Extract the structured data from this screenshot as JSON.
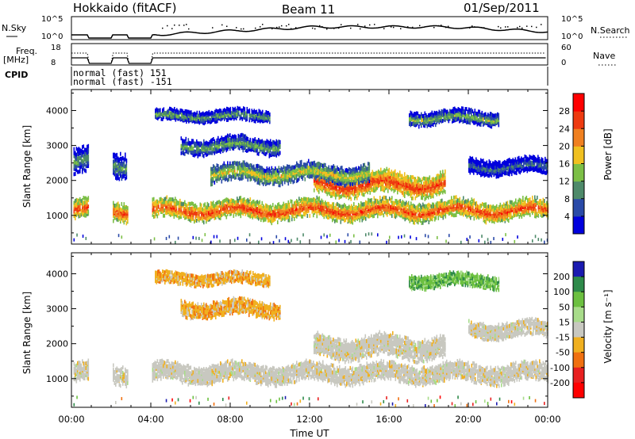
{
  "header": {
    "station": "Hokkaido (fitACF)",
    "beam": "Beam 11",
    "date": "01/Sep/2011"
  },
  "strip": {
    "nsky_label": "N.Sky",
    "nsky_ticks": [
      "10^5",
      "10^0"
    ],
    "nsearch_label": "N.Search",
    "nsearch_ticks": [
      "10^5",
      "10^0"
    ],
    "freq_label": "Freq.",
    "freq_unit": "[MHz]",
    "freq_ticks": [
      "18",
      "8"
    ],
    "nave_label": "Nave",
    "nave_ticks": [
      "60",
      "0"
    ],
    "cpid_label": "CPID",
    "cpid_lines": [
      "normal (fast) 151",
      "normal (fast) -151"
    ]
  },
  "chart_data": [
    {
      "type": "heatmap",
      "name": "power",
      "xlabel": "",
      "ylabel": "Slant Range [km]",
      "x_ticks": [
        "00:00",
        "04:00",
        "08:00",
        "12:00",
        "16:00",
        "20:00",
        "00:00"
      ],
      "y_ticks": [
        1000,
        2000,
        3000,
        4000
      ],
      "xlim_hours": [
        0,
        24
      ],
      "ylim_km": [
        180,
        4600
      ],
      "colorbar_label": "Power [dB]",
      "colorbar_ticks": [
        4,
        8,
        12,
        16,
        20,
        24,
        28
      ],
      "colorbar_range": [
        0,
        32
      ],
      "colors": [
        "#0000dd",
        "#2a4aa8",
        "#4e8a6a",
        "#7cbf46",
        "#f0c020",
        "#f08020",
        "#ee3a10",
        "#ff0000"
      ],
      "bands": [
        {
          "t": [
            0.1,
            24
          ],
          "center": 1150,
          "width": 420,
          "level": 26
        },
        {
          "t": [
            12.2,
            18.8
          ],
          "center": 1900,
          "width": 500,
          "level": 27
        },
        {
          "t": [
            7.0,
            15.0
          ],
          "center": 2200,
          "width": 400,
          "level": 18
        },
        {
          "t": [
            0.1,
            2.8
          ],
          "center": 2500,
          "width": 600,
          "level": 12
        },
        {
          "t": [
            5.5,
            10.5
          ],
          "center": 3000,
          "width": 350,
          "level": 14
        },
        {
          "t": [
            4.2,
            10.0
          ],
          "center": 3850,
          "width": 250,
          "level": 13
        },
        {
          "t": [
            17.0,
            21.5
          ],
          "center": 3800,
          "width": 300,
          "level": 14
        },
        {
          "t": [
            20.0,
            24
          ],
          "center": 2400,
          "width": 350,
          "level": 10
        }
      ]
    },
    {
      "type": "heatmap",
      "name": "velocity",
      "xlabel": "Time UT",
      "ylabel": "Slant Range [km]",
      "x_ticks": [
        "00:00",
        "04:00",
        "08:00",
        "12:00",
        "16:00",
        "20:00",
        "00:00"
      ],
      "y_ticks": [
        1000,
        2000,
        3000,
        4000
      ],
      "xlim_hours": [
        0,
        24
      ],
      "ylim_km": [
        180,
        4600
      ],
      "colorbar_label": "Velocity [m s⁻¹]",
      "colorbar_ticks": [
        "200",
        "100",
        "50",
        "15",
        "-15",
        "-50",
        "-100",
        "-200"
      ],
      "colors": [
        "#1a1ab0",
        "#2e8a4a",
        "#6cc040",
        "#a8dc8a",
        "#c8c8c0",
        "#f0b020",
        "#f07010",
        "#e82020",
        "#ff0000"
      ],
      "bands": [
        {
          "t": [
            0.1,
            24
          ],
          "center": 1150,
          "width": 420,
          "class": "ground"
        },
        {
          "t": [
            12.2,
            18.8
          ],
          "center": 1900,
          "width": 500,
          "class": "ground"
        },
        {
          "t": [
            5.5,
            10.5
          ],
          "center": 3000,
          "width": 350,
          "class": "neg"
        },
        {
          "t": [
            4.2,
            10.0
          ],
          "center": 3850,
          "width": 250,
          "class": "neg"
        },
        {
          "t": [
            17.0,
            21.5
          ],
          "center": 3800,
          "width": 300,
          "class": "pos"
        },
        {
          "t": [
            20.0,
            24
          ],
          "center": 2400,
          "width": 350,
          "class": "ground"
        }
      ]
    }
  ],
  "data_gaps_hours": [
    [
      0.85,
      2.05
    ],
    [
      2.85,
      4.05
    ]
  ]
}
